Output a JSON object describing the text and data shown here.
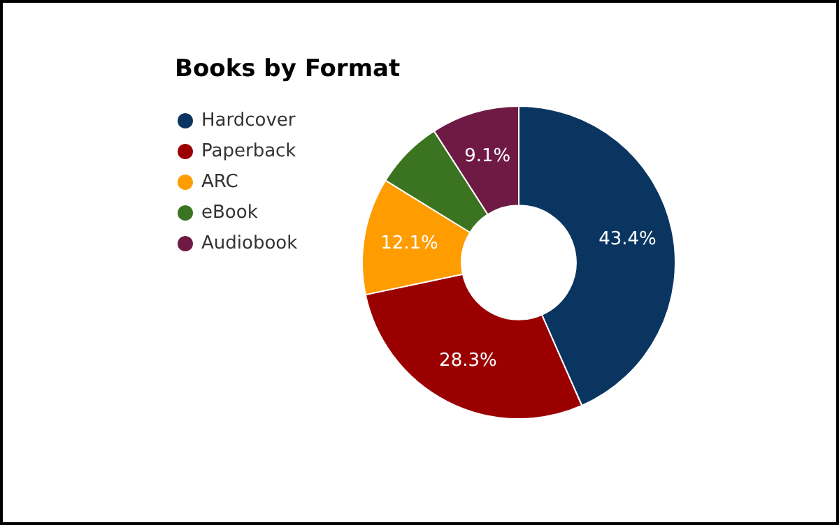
{
  "chart_data": {
    "type": "donut",
    "title": "Books by Format",
    "categories": [
      "Hardcover",
      "Paperback",
      "ARC",
      "eBook",
      "Audiobook"
    ],
    "values": [
      43.4,
      28.3,
      12.1,
      7.1,
      9.1
    ],
    "colors": [
      "#0a3561",
      "#9b0000",
      "#ff9c00",
      "#3a7420",
      "#6f1a45"
    ],
    "value_labels": [
      "43.4%",
      "28.3%",
      "12.1%",
      null,
      "9.1%"
    ],
    "legend": "top left"
  }
}
